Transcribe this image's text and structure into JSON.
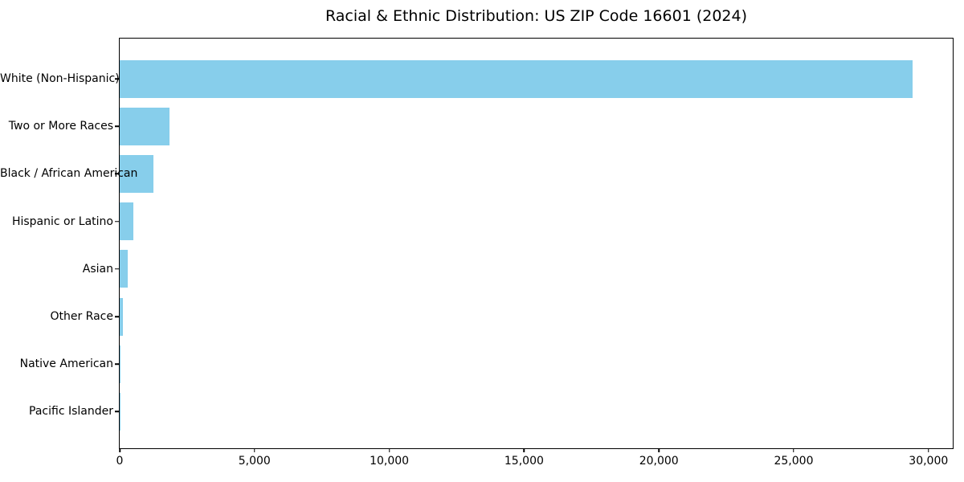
{
  "chart_data": {
    "type": "bar",
    "orientation": "horizontal",
    "title": "Racial & Ethnic Distribution: US ZIP Code 16601 (2024)",
    "categories": [
      "White (Non-Hispanic)",
      "Two or More Races",
      "Black / African American",
      "Hispanic or Latino",
      "Asian",
      "Other Race",
      "Native American",
      "Pacific Islander"
    ],
    "values": [
      29400,
      1840,
      1240,
      520,
      310,
      130,
      20,
      10
    ],
    "xlabel": "",
    "ylabel": "",
    "xlim": [
      0,
      30900
    ],
    "x_ticks": [
      0,
      5000,
      10000,
      15000,
      20000,
      25000,
      30000
    ],
    "x_tick_labels": [
      "0",
      "5,000",
      "10,000",
      "15,000",
      "20,000",
      "25,000",
      "30,000"
    ],
    "grid": false,
    "legend": false,
    "bar_color": "#87CEEB",
    "background_color": "#FFFFFF",
    "axis_color": "#000000",
    "text_color": "#000000"
  }
}
